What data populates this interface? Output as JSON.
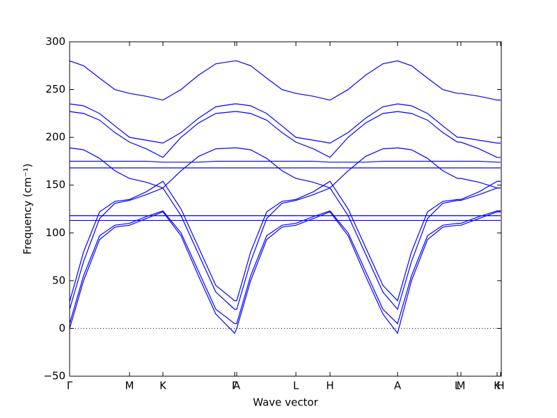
{
  "chart_data": {
    "type": "line",
    "xlabel": "Wave vector",
    "ylabel": "Frequency (cm⁻¹)",
    "color": "#0000ff",
    "xlim": [
      0,
      620
    ],
    "ylim": [
      -50,
      300
    ],
    "yticks": [
      {
        "value": -50,
        "label": "−50"
      },
      0,
      50,
      100,
      150,
      200,
      250,
      300
    ],
    "xticks": [
      {
        "value": 0,
        "label": "Γ"
      },
      {
        "value": 86,
        "label": "M"
      },
      {
        "value": 134,
        "label": "K"
      },
      {
        "value": 237,
        "label": "Γ"
      },
      {
        "value": 240,
        "label": "A"
      },
      {
        "value": 325,
        "label": "L"
      },
      {
        "value": 374,
        "label": "H"
      },
      {
        "value": 471,
        "label": "A"
      },
      {
        "value": 557,
        "label": "L"
      },
      {
        "value": 562,
        "label": "M"
      },
      {
        "value": 614,
        "label": "K"
      },
      {
        "value": 619,
        "label": "H"
      }
    ],
    "hline": 0,
    "x": [
      0,
      20,
      43,
      65,
      86,
      110,
      134,
      160,
      185,
      210,
      237,
      240,
      260,
      283,
      305,
      325,
      350,
      374,
      400,
      425,
      450,
      471,
      491,
      514,
      536,
      557,
      562,
      588,
      614,
      619
    ],
    "series": [
      {
        "values": [
          280,
          275,
          262,
          250,
          246,
          243,
          239,
          250,
          265,
          277,
          280,
          280,
          275,
          262,
          250,
          246,
          243,
          239,
          250,
          265,
          277,
          280,
          275,
          262,
          250,
          246,
          246,
          243,
          239,
          239
        ]
      },
      {
        "values": [
          235,
          233,
          225,
          212,
          200,
          197,
          194,
          205,
          220,
          232,
          235,
          235,
          233,
          225,
          212,
          200,
          197,
          194,
          205,
          220,
          232,
          235,
          233,
          225,
          212,
          200,
          200,
          197,
          194,
          194
        ]
      },
      {
        "values": [
          227,
          225,
          218,
          205,
          195,
          188,
          179,
          200,
          215,
          225,
          227,
          227,
          225,
          218,
          205,
          195,
          188,
          179,
          200,
          215,
          225,
          227,
          225,
          218,
          205,
          195,
          195,
          188,
          179,
          179
        ]
      },
      {
        "values": [
          189,
          187,
          178,
          165,
          157,
          153,
          147,
          165,
          180,
          188,
          189,
          189,
          187,
          178,
          165,
          157,
          153,
          147,
          165,
          180,
          188,
          189,
          187,
          178,
          165,
          157,
          157,
          153,
          147,
          147
        ]
      },
      {
        "values": [
          175,
          175,
          175,
          175,
          175,
          175,
          174,
          174,
          174,
          175,
          175,
          175,
          175,
          175,
          175,
          175,
          175,
          174,
          174,
          174,
          175,
          175,
          175,
          175,
          175,
          175,
          175,
          175,
          174,
          174
        ]
      },
      {
        "values": [
          168,
          168,
          168,
          168,
          168,
          168,
          168,
          168,
          168,
          168,
          168,
          168,
          168,
          168,
          168,
          168,
          168,
          168,
          168,
          168,
          168,
          168,
          168,
          168,
          168,
          168,
          168,
          168,
          168,
          168
        ]
      },
      {
        "values": [
          118,
          118,
          118,
          118,
          118,
          118,
          118,
          118,
          118,
          118,
          118,
          118,
          118,
          118,
          118,
          118,
          118,
          118,
          118,
          118,
          118,
          118,
          118,
          118,
          118,
          118,
          118,
          118,
          118,
          118
        ]
      },
      {
        "values": [
          113,
          113,
          113,
          113,
          113,
          113,
          113,
          113,
          113,
          113,
          113,
          113,
          113,
          113,
          113,
          113,
          113,
          113,
          113,
          113,
          113,
          113,
          113,
          113,
          113,
          113,
          113,
          113,
          113,
          113
        ]
      },
      {
        "values": [
          28,
          80,
          122,
          133,
          135,
          143,
          154,
          125,
          85,
          45,
          29,
          29,
          80,
          122,
          133,
          135,
          143,
          154,
          125,
          85,
          45,
          29,
          80,
          122,
          133,
          135,
          135,
          143,
          154,
          154
        ]
      },
      {
        "values": [
          20,
          70,
          115,
          131,
          134,
          140,
          147,
          118,
          78,
          38,
          20,
          20,
          70,
          115,
          131,
          134,
          140,
          147,
          118,
          78,
          38,
          20,
          70,
          115,
          131,
          134,
          134,
          140,
          147,
          147
        ]
      },
      {
        "values": [
          5,
          55,
          97,
          108,
          110,
          117,
          123,
          100,
          60,
          20,
          5,
          5,
          55,
          97,
          108,
          110,
          117,
          123,
          100,
          60,
          20,
          5,
          55,
          97,
          108,
          110,
          110,
          117,
          123,
          123
        ]
      },
      {
        "values": [
          0,
          50,
          93,
          106,
          108,
          115,
          122,
          97,
          55,
          15,
          -5,
          0,
          50,
          93,
          106,
          108,
          115,
          122,
          97,
          55,
          15,
          -5,
          50,
          93,
          106,
          108,
          108,
          115,
          122,
          122
        ]
      }
    ]
  }
}
